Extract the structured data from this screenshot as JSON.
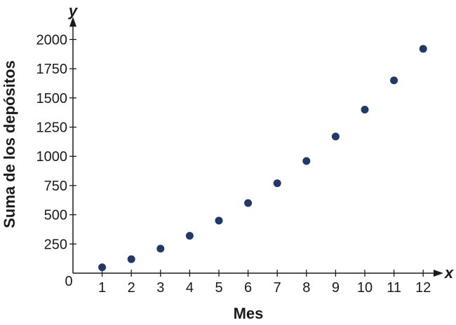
{
  "chart_data": {
    "type": "scatter",
    "title": "",
    "xlabel": "Mes",
    "ylabel": "Suma de los depósitos",
    "x_axis_var": "x",
    "y_axis_var": "y",
    "origin_label": "0",
    "x": [
      1,
      2,
      3,
      4,
      5,
      6,
      7,
      8,
      9,
      10,
      11,
      12
    ],
    "y": [
      50,
      120,
      210,
      320,
      450,
      600,
      770,
      960,
      1170,
      1400,
      1650,
      1920
    ],
    "x_ticks": [
      "1",
      "2",
      "3",
      "4",
      "5",
      "6",
      "7",
      "8",
      "9",
      "10",
      "11",
      "12"
    ],
    "y_ticks": [
      "250",
      "500",
      "750",
      "1000",
      "1250",
      "1500",
      "1750",
      "2000"
    ],
    "xlim": [
      0,
      12
    ],
    "ylim": [
      0,
      2000
    ],
    "grid": false,
    "legend": "none",
    "colors": {
      "points": "#1f3a68",
      "axis": "#1a1a1a"
    }
  }
}
